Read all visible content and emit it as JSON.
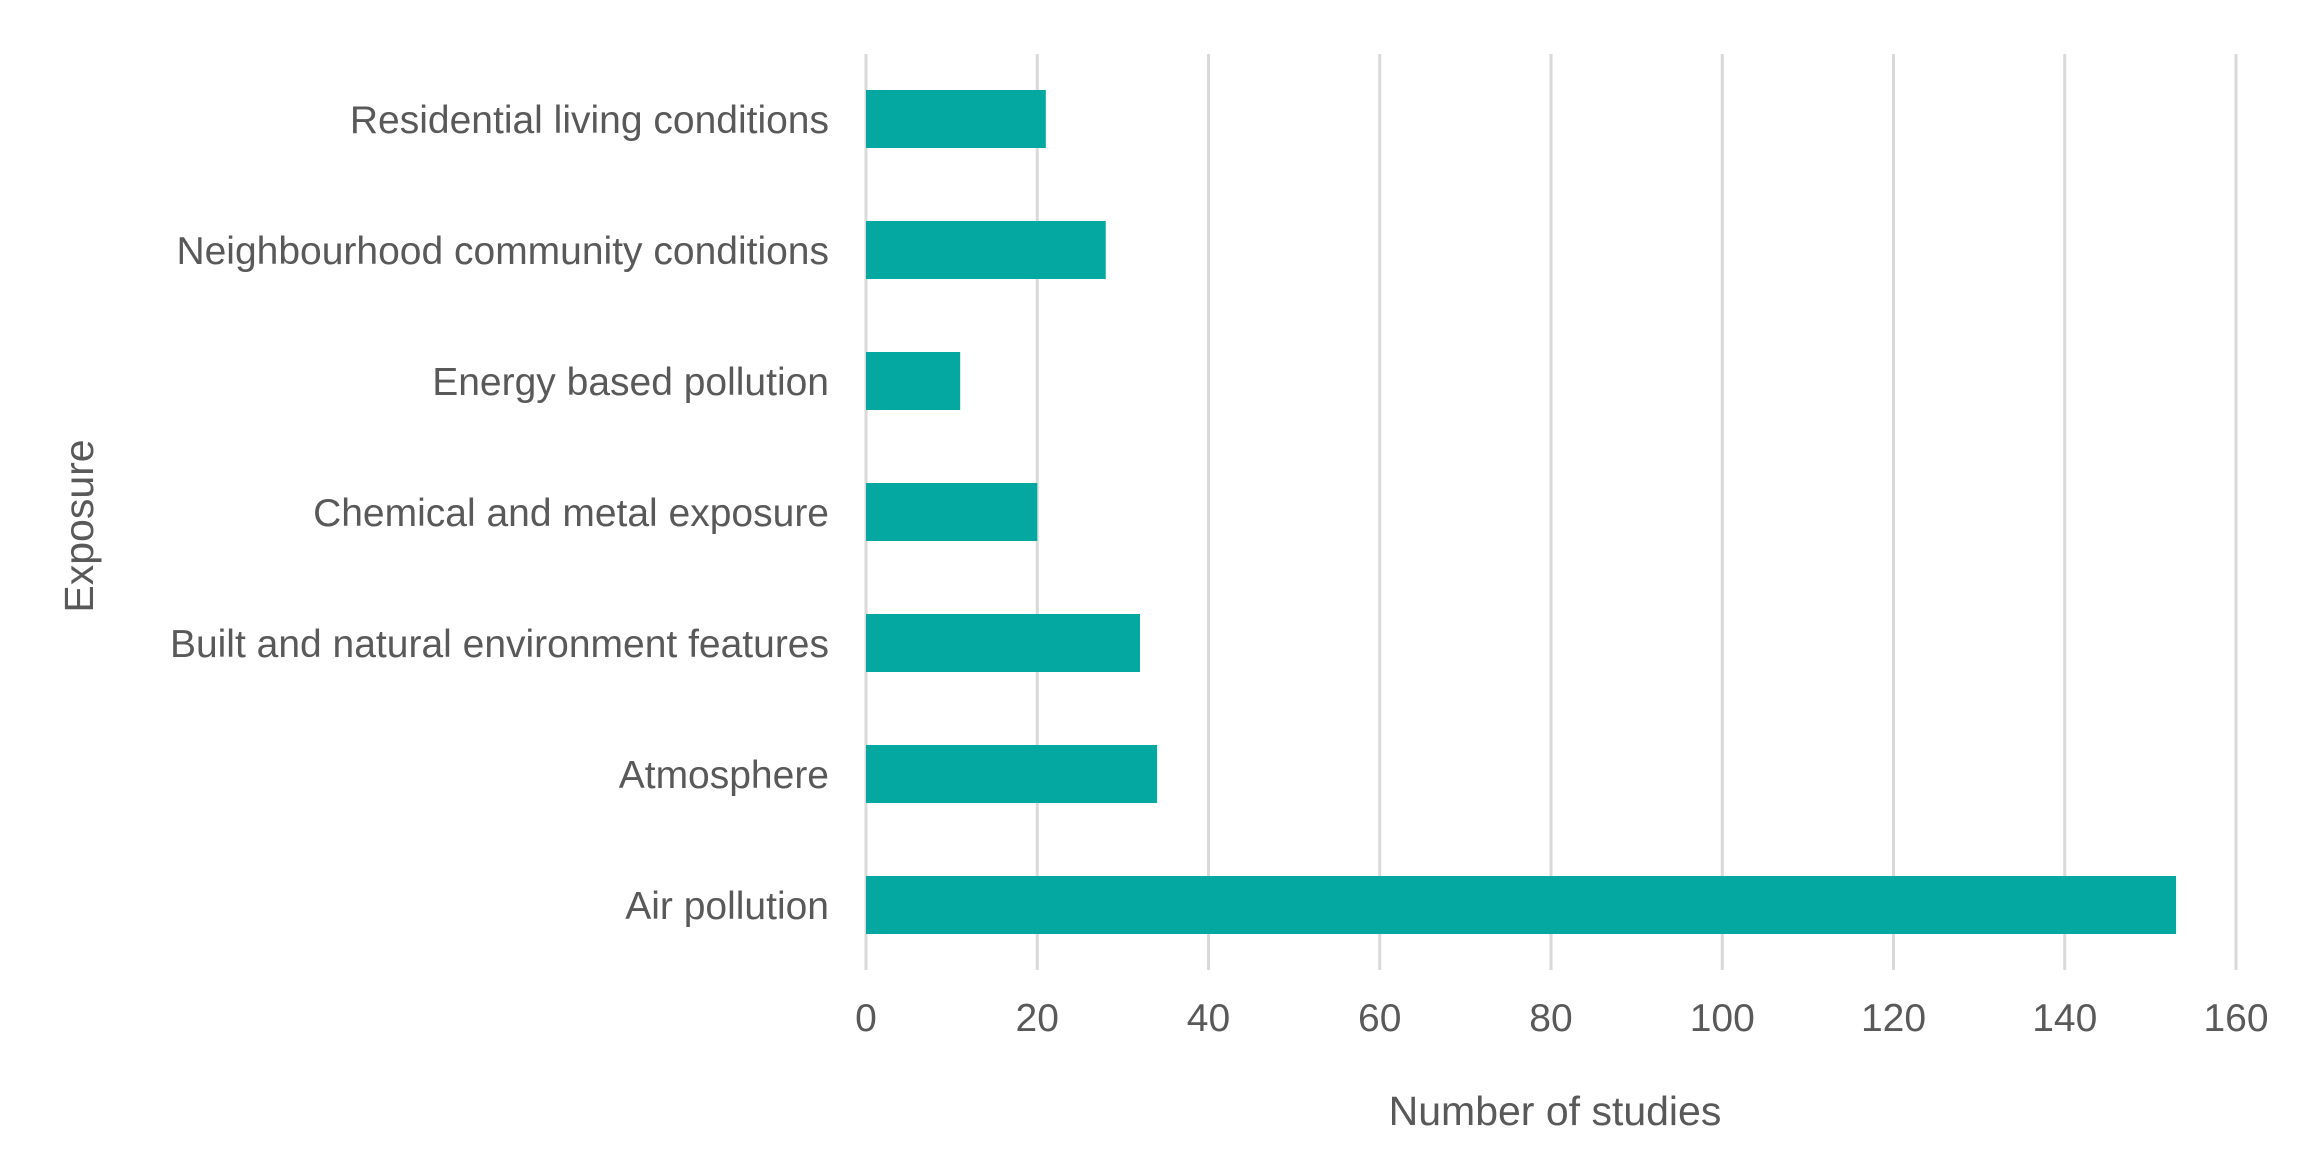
{
  "chart_data": {
    "type": "bar",
    "orientation": "horizontal",
    "categories": [
      "Residential living conditions",
      "Neighbourhood community conditions",
      "Energy based pollution",
      "Chemical and metal exposure",
      "Built and natural environment features",
      "Atmosphere",
      "Air pollution"
    ],
    "values": [
      21,
      28,
      11,
      20,
      32,
      34,
      153
    ],
    "xlabel": "Number of studies",
    "ylabel": "Exposure",
    "xlim": [
      0,
      160
    ],
    "xticks": [
      "0",
      "20",
      "40",
      "60",
      "80",
      "100",
      "120",
      "140",
      "160"
    ],
    "grid": "vertical",
    "legend": "none",
    "colors": {
      "bar": "#05A8A0",
      "grid": "#D9D9D9",
      "text": "#595959"
    }
  }
}
